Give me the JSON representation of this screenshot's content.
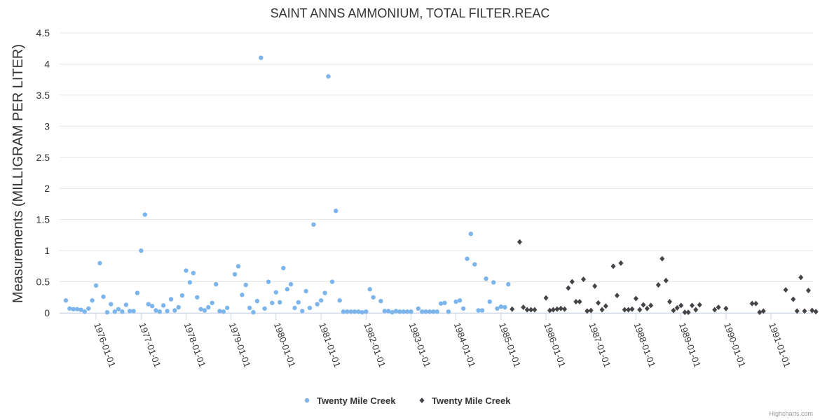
{
  "chart_data": {
    "type": "scatter",
    "title": "SAINT ANNS AMMONIUM, TOTAL FILTER.REAC",
    "xlabel": "",
    "ylabel": "Measurements (MILLIGRAM PER LITER)",
    "ylim": [
      0,
      4.5
    ],
    "yticks": [
      "0",
      "0.5",
      "1",
      "1.5",
      "2",
      "2.5",
      "3",
      "3.5",
      "4",
      "4.5"
    ],
    "xticks": [
      "1976-01-01",
      "1977-01-01",
      "1978-01-01",
      "1979-01-01",
      "1980-01-01",
      "1981-01-01",
      "1982-01-01",
      "1983-01-01",
      "1984-01-01",
      "1985-01-01",
      "1986-01-01",
      "1987-01-01",
      "1988-01-01",
      "1989-01-01",
      "1990-01-01",
      "1991-01-01"
    ],
    "grid": true,
    "legend": "bottom-center",
    "credits": "Highcharts.com",
    "series": [
      {
        "name": "Twenty Mile Creek",
        "color": "#7cb5ec",
        "marker": "circle",
        "points": [
          [
            "1975-05-01",
            0.2
          ],
          [
            "1975-06-01",
            0.07
          ],
          [
            "1975-07-01",
            0.06
          ],
          [
            "1975-08-01",
            0.06
          ],
          [
            "1975-09-01",
            0.05
          ],
          [
            "1975-10-01",
            0.02
          ],
          [
            "1975-11-01",
            0.07
          ],
          [
            "1975-12-01",
            0.2
          ],
          [
            "1976-01-01",
            0.44
          ],
          [
            "1976-02-01",
            0.8
          ],
          [
            "1976-03-01",
            0.26
          ],
          [
            "1976-04-01",
            0.01
          ],
          [
            "1976-05-01",
            0.14
          ],
          [
            "1976-06-01",
            0.02
          ],
          [
            "1976-07-01",
            0.06
          ],
          [
            "1976-08-01",
            0.02
          ],
          [
            "1976-09-01",
            0.13
          ],
          [
            "1976-10-01",
            0.03
          ],
          [
            "1976-11-01",
            0.03
          ],
          [
            "1976-12-01",
            0.32
          ],
          [
            "1977-01-01",
            1.0
          ],
          [
            "1977-02-01",
            1.58
          ],
          [
            "1977-03-01",
            0.14
          ],
          [
            "1977-04-01",
            0.11
          ],
          [
            "1977-05-01",
            0.04
          ],
          [
            "1977-06-01",
            0.02
          ],
          [
            "1977-07-01",
            0.12
          ],
          [
            "1977-08-01",
            0.03
          ],
          [
            "1977-09-01",
            0.22
          ],
          [
            "1977-10-01",
            0.04
          ],
          [
            "1977-11-01",
            0.09
          ],
          [
            "1977-12-01",
            0.28
          ],
          [
            "1978-01-01",
            0.68
          ],
          [
            "1978-02-01",
            0.49
          ],
          [
            "1978-03-01",
            0.64
          ],
          [
            "1978-04-01",
            0.25
          ],
          [
            "1978-05-01",
            0.06
          ],
          [
            "1978-06-01",
            0.04
          ],
          [
            "1978-07-01",
            0.09
          ],
          [
            "1978-08-01",
            0.16
          ],
          [
            "1978-09-01",
            0.46
          ],
          [
            "1978-10-01",
            0.03
          ],
          [
            "1978-11-01",
            0.02
          ],
          [
            "1978-12-01",
            0.08
          ],
          [
            "1979-02-01",
            0.62
          ],
          [
            "1979-03-01",
            0.75
          ],
          [
            "1979-04-01",
            0.29
          ],
          [
            "1979-05-01",
            0.45
          ],
          [
            "1979-06-01",
            0.08
          ],
          [
            "1979-07-01",
            0.01
          ],
          [
            "1979-08-01",
            0.19
          ],
          [
            "1979-09-01",
            4.1
          ],
          [
            "1979-10-01",
            0.07
          ],
          [
            "1979-11-01",
            0.5
          ],
          [
            "1979-12-01",
            0.16
          ],
          [
            "1980-01-01",
            0.33
          ],
          [
            "1980-02-01",
            0.17
          ],
          [
            "1980-03-01",
            0.72
          ],
          [
            "1980-04-01",
            0.38
          ],
          [
            "1980-05-01",
            0.46
          ],
          [
            "1980-06-01",
            0.08
          ],
          [
            "1980-07-01",
            0.17
          ],
          [
            "1980-08-01",
            0.03
          ],
          [
            "1980-09-01",
            0.35
          ],
          [
            "1980-10-01",
            0.08
          ],
          [
            "1980-11-01",
            1.42
          ],
          [
            "1980-12-01",
            0.14
          ],
          [
            "1981-01-01",
            0.2
          ],
          [
            "1981-02-01",
            0.32
          ],
          [
            "1981-03-01",
            3.8
          ],
          [
            "1981-04-01",
            0.5
          ],
          [
            "1981-05-01",
            1.64
          ],
          [
            "1981-06-01",
            0.2
          ],
          [
            "1981-07-01",
            0.02
          ],
          [
            "1981-08-01",
            0.02
          ],
          [
            "1981-09-01",
            0.02
          ],
          [
            "1981-10-01",
            0.02
          ],
          [
            "1981-11-01",
            0.02
          ],
          [
            "1981-12-01",
            0.01
          ],
          [
            "1982-01-01",
            0.02
          ],
          [
            "1982-02-01",
            0.38
          ],
          [
            "1982-03-01",
            0.25
          ],
          [
            "1982-05-01",
            0.19
          ],
          [
            "1982-06-01",
            0.03
          ],
          [
            "1982-07-01",
            0.03
          ],
          [
            "1982-08-01",
            0.01
          ],
          [
            "1982-09-01",
            0.03
          ],
          [
            "1982-10-01",
            0.02
          ],
          [
            "1982-11-01",
            0.02
          ],
          [
            "1982-12-01",
            0.02
          ],
          [
            "1983-01-01",
            0.02
          ],
          [
            "1983-03-01",
            0.07
          ],
          [
            "1983-04-01",
            0.02
          ],
          [
            "1983-05-01",
            0.02
          ],
          [
            "1983-06-01",
            0.02
          ],
          [
            "1983-07-01",
            0.02
          ],
          [
            "1983-08-01",
            0.02
          ],
          [
            "1983-09-01",
            0.15
          ],
          [
            "1983-10-01",
            0.16
          ],
          [
            "1983-11-01",
            0.02
          ],
          [
            "1984-01-01",
            0.18
          ],
          [
            "1984-02-01",
            0.2
          ],
          [
            "1984-03-01",
            0.07
          ],
          [
            "1984-04-01",
            0.87
          ],
          [
            "1984-05-01",
            1.27
          ],
          [
            "1984-06-01",
            0.78
          ],
          [
            "1984-07-01",
            0.04
          ],
          [
            "1984-08-01",
            0.04
          ],
          [
            "1984-09-01",
            0.55
          ],
          [
            "1984-10-01",
            0.18
          ],
          [
            "1984-11-01",
            0.49
          ],
          [
            "1984-12-01",
            0.07
          ],
          [
            "1985-01-01",
            0.1
          ],
          [
            "1985-02-01",
            0.09
          ],
          [
            "1985-03-01",
            0.46
          ]
        ]
      },
      {
        "name": "Twenty Mile Creek",
        "color": "#434348",
        "marker": "diamond",
        "points": [
          [
            "1985-04-01",
            0.06
          ],
          [
            "1985-06-01",
            1.14
          ],
          [
            "1985-07-01",
            0.09
          ],
          [
            "1985-08-01",
            0.05
          ],
          [
            "1985-09-01",
            0.05
          ],
          [
            "1985-10-01",
            0.05
          ],
          [
            "1986-01-01",
            0.24
          ],
          [
            "1986-02-01",
            0.04
          ],
          [
            "1986-03-01",
            0.05
          ],
          [
            "1986-04-01",
            0.06
          ],
          [
            "1986-05-01",
            0.07
          ],
          [
            "1986-06-01",
            0.06
          ],
          [
            "1986-07-01",
            0.4
          ],
          [
            "1986-08-01",
            0.5
          ],
          [
            "1986-09-01",
            0.18
          ],
          [
            "1986-10-01",
            0.18
          ],
          [
            "1986-11-01",
            0.54
          ],
          [
            "1986-12-01",
            0.03
          ],
          [
            "1987-01-01",
            0.04
          ],
          [
            "1987-02-01",
            0.43
          ],
          [
            "1987-03-01",
            0.16
          ],
          [
            "1987-04-01",
            0.05
          ],
          [
            "1987-05-01",
            0.11
          ],
          [
            "1987-07-01",
            0.75
          ],
          [
            "1987-08-01",
            0.28
          ],
          [
            "1987-09-01",
            0.8
          ],
          [
            "1987-10-01",
            0.05
          ],
          [
            "1987-11-01",
            0.05
          ],
          [
            "1987-12-01",
            0.06
          ],
          [
            "1988-01-01",
            0.23
          ],
          [
            "1988-02-01",
            0.05
          ],
          [
            "1988-03-01",
            0.13
          ],
          [
            "1988-04-01",
            0.07
          ],
          [
            "1988-05-01",
            0.12
          ],
          [
            "1988-07-01",
            0.45
          ],
          [
            "1988-08-01",
            0.87
          ],
          [
            "1988-09-01",
            0.52
          ],
          [
            "1988-10-01",
            0.18
          ],
          [
            "1988-11-01",
            0.04
          ],
          [
            "1988-12-01",
            0.08
          ],
          [
            "1989-01-01",
            0.12
          ],
          [
            "1989-02-01",
            0.01
          ],
          [
            "1989-03-01",
            0.01
          ],
          [
            "1989-04-01",
            0.12
          ],
          [
            "1989-05-01",
            0.05
          ],
          [
            "1989-06-01",
            0.13
          ],
          [
            "1989-10-01",
            0.05
          ],
          [
            "1989-11-01",
            0.09
          ],
          [
            "1990-01-01",
            0.07
          ],
          [
            "1990-08-01",
            0.15
          ],
          [
            "1990-09-01",
            0.15
          ],
          [
            "1990-10-01",
            0.01
          ],
          [
            "1990-11-01",
            0.03
          ],
          [
            "1991-05-01",
            0.37
          ],
          [
            "1991-07-01",
            0.22
          ],
          [
            "1991-08-01",
            0.03
          ],
          [
            "1991-09-01",
            0.57
          ],
          [
            "1991-10-01",
            0.03
          ],
          [
            "1991-11-01",
            0.36
          ],
          [
            "1991-12-01",
            0.04
          ],
          [
            "1992-01-01",
            0.02
          ]
        ]
      }
    ]
  }
}
